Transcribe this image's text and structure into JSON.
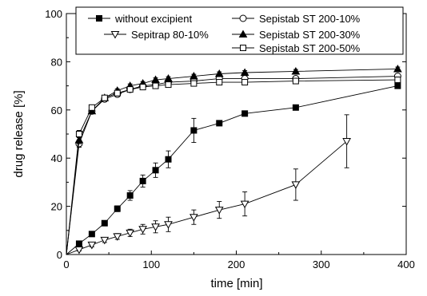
{
  "chart_data": {
    "type": "line",
    "xlabel": "time [min]",
    "ylabel": "drug release [%]",
    "xlim": [
      0,
      400
    ],
    "ylim": [
      0,
      100
    ],
    "x_ticks": [
      "0",
      "100",
      "200",
      "300",
      "400"
    ],
    "y_ticks": [
      "0",
      "20",
      "40",
      "60",
      "80",
      "100"
    ],
    "grid": false,
    "legend_position": "top",
    "series": [
      {
        "name": "without excipient",
        "marker": "filled-square",
        "x": [
          0,
          15,
          30,
          45,
          60,
          75,
          90,
          105,
          120,
          150,
          180,
          210,
          270,
          390
        ],
        "y": [
          0,
          4.5,
          8.5,
          13,
          19,
          24.5,
          30.5,
          35,
          39.5,
          51.5,
          54.5,
          58.5,
          61,
          70
        ],
        "err": [
          0,
          0.5,
          0.8,
          1,
          1.2,
          2,
          2.5,
          3,
          3.5,
          5,
          1,
          0.8,
          0.5,
          0.5
        ]
      },
      {
        "name": "Sepitrap 80-10%",
        "marker": "open-triangle-down",
        "x": [
          0,
          15,
          30,
          45,
          60,
          75,
          90,
          105,
          120,
          150,
          180,
          210,
          270,
          330
        ],
        "y": [
          0,
          2,
          4,
          6,
          7.5,
          9,
          10.5,
          11.5,
          12.5,
          15.5,
          18.5,
          21,
          29,
          47
        ],
        "err": [
          0,
          0.5,
          0.8,
          1,
          1.2,
          1.5,
          2,
          2.5,
          3,
          3,
          3.5,
          5,
          6.5,
          11
        ]
      },
      {
        "name": "Sepistab ST 200-10%",
        "marker": "open-circle",
        "x": [
          0,
          15,
          30,
          45,
          60,
          75,
          90,
          105,
          120,
          150,
          180,
          210,
          270,
          390
        ],
        "y": [
          0,
          46,
          59.5,
          64.5,
          66.5,
          68.5,
          70,
          70.5,
          71.5,
          72,
          73,
          73,
          73,
          74
        ],
        "err": [
          0,
          1.5,
          1,
          1,
          0.8,
          0.8,
          0.8,
          0.8,
          0.8,
          0.8,
          0.8,
          0.8,
          0.8,
          0.8
        ]
      },
      {
        "name": "Sepistab ST 200-30%",
        "marker": "filled-triangle-up",
        "x": [
          0,
          15,
          30,
          45,
          60,
          75,
          90,
          105,
          120,
          150,
          180,
          210,
          270,
          390
        ],
        "y": [
          0,
          47.5,
          59.5,
          65,
          68,
          70,
          71,
          72.5,
          73,
          74,
          75,
          75.5,
          76,
          77
        ],
        "err": [
          0,
          1.5,
          1,
          1,
          0.8,
          0.8,
          0.8,
          0.8,
          0.8,
          0.8,
          0.8,
          0.8,
          0.8,
          0.8
        ]
      },
      {
        "name": "Sepistab ST 200-50%",
        "marker": "open-square",
        "x": [
          0,
          15,
          30,
          45,
          60,
          75,
          90,
          105,
          120,
          150,
          180,
          210,
          270,
          390
        ],
        "y": [
          0,
          50,
          61,
          65,
          67,
          68.5,
          69.5,
          70,
          70.5,
          71,
          71.5,
          71.5,
          72,
          72.5
        ],
        "err": [
          0,
          1.5,
          1,
          1,
          0.8,
          0.8,
          0.8,
          0.8,
          0.8,
          0.8,
          0.8,
          0.8,
          0.8,
          0.8
        ]
      }
    ]
  }
}
